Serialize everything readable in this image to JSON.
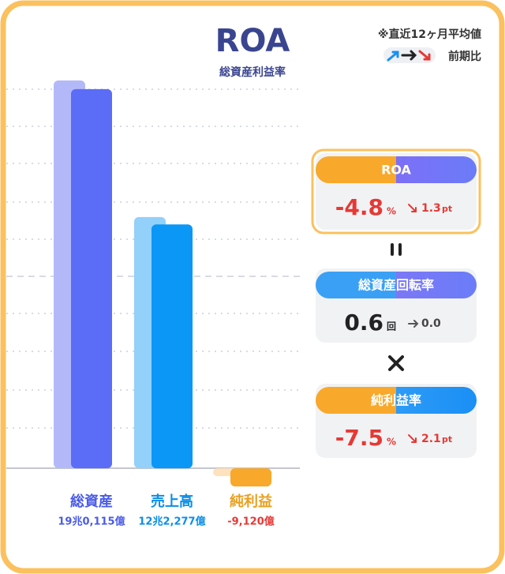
{
  "chart_data": {
    "type": "bar",
    "title": "ROA",
    "subtitle": "総資産利益率",
    "note": "※直近12ヶ月平均値",
    "legend_label": "前期比",
    "categories": [
      "総資産",
      "売上高",
      "純利益"
    ],
    "value_labels": [
      "19兆0,115億",
      "12兆2,277億",
      "-9,120億"
    ],
    "series": [
      {
        "colors": [
          "#b3b9f8",
          "#93d0fa",
          "#fde2bd"
        ],
        "values": [
          194500,
          126000,
          -4000
        ]
      },
      {
        "colors": [
          "#5b6cf6",
          "#0a97f6",
          "#f8a82a"
        ],
        "values": [
          190115,
          122277,
          -9120
        ]
      }
    ],
    "label_colors": [
      "#4a5be8",
      "#0a8ee8",
      "#e8a020"
    ],
    "value_label_colors": [
      "#4a5be8",
      "#0a8ee8",
      "#e53935"
    ],
    "ylim": [
      -26500,
      198000
    ],
    "kpis": [
      {
        "label": "ROA",
        "value": -4.8,
        "unit": "%",
        "change": 1.3,
        "change_unit": "pt",
        "trend": "down",
        "highlight": true
      },
      {
        "label": "総資産回転率",
        "value": 0.6,
        "unit": "回",
        "change": 0.0,
        "value_label": "0.6",
        "change_label": "0.0",
        "trend": "flat"
      },
      {
        "label": "純利益率",
        "value": -7.5,
        "unit": "%",
        "change": 2.1,
        "change_unit": "pt",
        "trend": "down"
      }
    ]
  }
}
